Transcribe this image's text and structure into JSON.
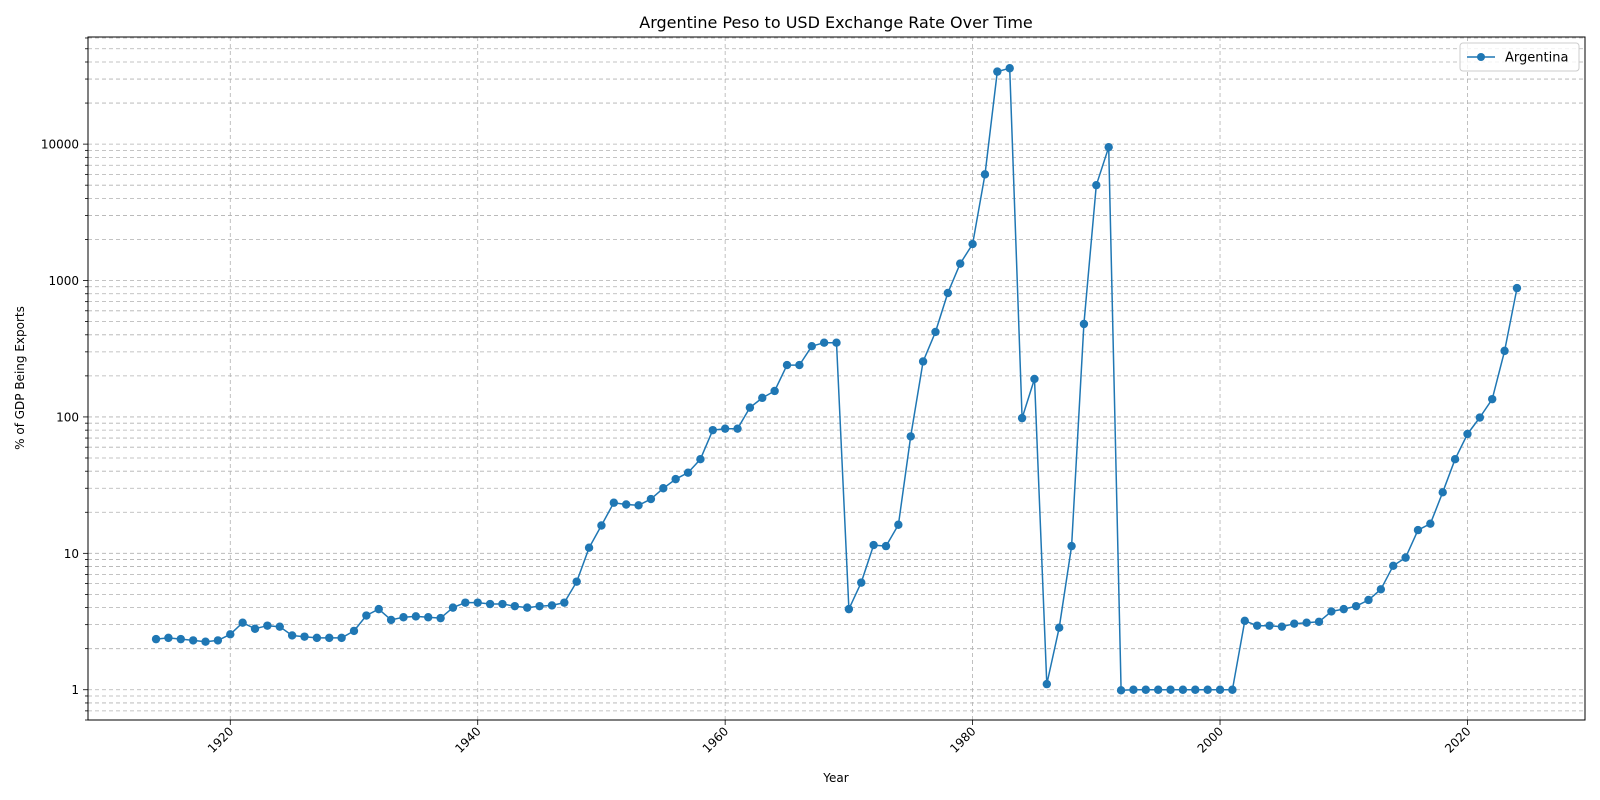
{
  "chart_data": {
    "type": "line",
    "title": "Argentine Peso to USD Exchange Rate Over Time",
    "xlabel": "Year",
    "ylabel": "% of GDP Being Exports",
    "yscale": "log",
    "xlim": [
      1908.5,
      2029.5
    ],
    "ylim": [
      0.6,
      61000
    ],
    "x_ticks": [
      1920,
      1940,
      1960,
      1980,
      2000,
      2020
    ],
    "y_ticks": [
      1,
      10,
      100,
      1000,
      10000
    ],
    "x_tick_rotation_deg": 45,
    "grid": true,
    "grid_style": "dashed, major and minor on log axis",
    "legend_position": "top-right",
    "marker": "circle",
    "series": [
      {
        "name": "Argentina",
        "color": "#1f77b4",
        "x": [
          1914,
          1915,
          1916,
          1917,
          1918,
          1919,
          1920,
          1921,
          1922,
          1923,
          1924,
          1925,
          1926,
          1927,
          1928,
          1929,
          1930,
          1931,
          1932,
          1933,
          1934,
          1935,
          1936,
          1937,
          1938,
          1939,
          1940,
          1941,
          1942,
          1943,
          1944,
          1945,
          1946,
          1947,
          1948,
          1949,
          1950,
          1951,
          1952,
          1953,
          1954,
          1955,
          1956,
          1957,
          1958,
          1959,
          1960,
          1961,
          1962,
          1963,
          1964,
          1965,
          1966,
          1967,
          1968,
          1969,
          1970,
          1971,
          1972,
          1973,
          1974,
          1975,
          1976,
          1977,
          1978,
          1979,
          1980,
          1981,
          1982,
          1983,
          1984,
          1985,
          1986,
          1987,
          1988,
          1989,
          1990,
          1991,
          1992,
          1993,
          1994,
          1995,
          1996,
          1997,
          1998,
          1999,
          2000,
          2001,
          2002,
          2003,
          2004,
          2005,
          2006,
          2007,
          2008,
          2009,
          2010,
          2011,
          2012,
          2013,
          2014,
          2015,
          2016,
          2017,
          2018,
          2019,
          2020,
          2021,
          2022,
          2023,
          2024
        ],
        "y": [
          2.35,
          2.4,
          2.35,
          2.3,
          2.25,
          2.3,
          2.55,
          3.1,
          2.8,
          2.95,
          2.9,
          2.5,
          2.45,
          2.4,
          2.4,
          2.4,
          2.7,
          3.5,
          3.9,
          3.25,
          3.4,
          3.45,
          3.4,
          3.35,
          4.0,
          4.35,
          4.35,
          4.25,
          4.25,
          4.1,
          4.0,
          4.1,
          4.15,
          4.35,
          6.2,
          11.0,
          16.0,
          23.5,
          22.8,
          22.5,
          25.0,
          30.0,
          35.0,
          39.0,
          49.0,
          80.0,
          82.0,
          82.0,
          117.0,
          138.0,
          155.0,
          240.0,
          240.0,
          330.0,
          350.0,
          350.0,
          3.9,
          6.1,
          11.5,
          11.3,
          16.2,
          72.0,
          255.0,
          420.0,
          810.0,
          1330.0,
          1850.0,
          6000.0,
          34000.0,
          36000.0,
          98.0,
          190.0,
          1.1,
          2.85,
          11.3,
          480.0,
          5000.0,
          9500.0,
          0.99,
          1.0,
          1.0,
          1.0,
          1.0,
          1.0,
          1.0,
          1.0,
          1.0,
          1.0,
          3.2,
          2.95,
          2.95,
          2.9,
          3.05,
          3.1,
          3.15,
          3.75,
          3.9,
          4.1,
          4.55,
          5.45,
          8.1,
          9.3,
          14.8,
          16.5,
          28.0,
          49.0,
          75.0,
          99.0,
          135.0,
          305.0,
          880.0
        ]
      }
    ]
  }
}
